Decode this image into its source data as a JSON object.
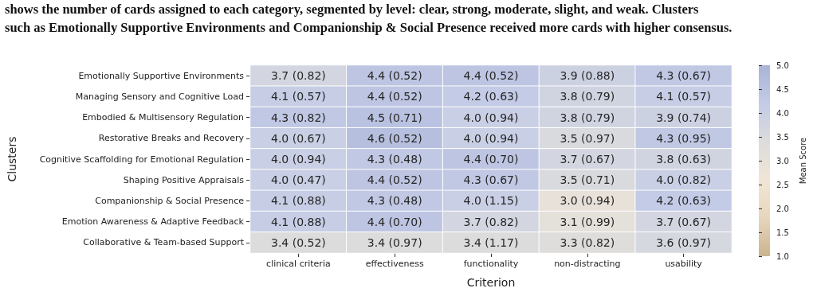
{
  "chart_data": {
    "type": "heatmap",
    "xlabel": "Criterion",
    "ylabel": "Clusters",
    "clabel": "Mean Score",
    "annotations": [
      "shows the number of cards assigned to each category, segmented by level: clear, strong, moderate, slight, and weak. Clusters",
      "such as Emotionally Supportive Environments and Companionship & Social Presence received more cards with higher consensus."
    ],
    "categories": [
      "clinical criteria",
      "effectiveness",
      "functionality",
      "non-distracting",
      "usability"
    ],
    "y_categories": [
      "Emotionally Supportive Environments",
      "Managing Sensory and Cognitive Load",
      "Embodied & Multisensory Regulation",
      "Restorative Breaks and Recovery",
      "Cognitive Scaffolding for Emotional Regulation",
      "Shaping Positive Appraisals",
      "Companionship & Social Presence",
      "Emotion Awareness & Adaptive Feedback",
      "Collaborative & Team-based Support"
    ],
    "cells": [
      [
        3.7,
        4.4,
        4.4,
        3.9,
        4.3
      ],
      [
        4.1,
        4.4,
        4.2,
        3.8,
        4.1
      ],
      [
        4.3,
        4.5,
        4.0,
        3.8,
        3.9
      ],
      [
        4.0,
        4.6,
        4.0,
        3.5,
        4.3
      ],
      [
        4.0,
        4.3,
        4.4,
        3.7,
        3.8
      ],
      [
        4.0,
        4.4,
        4.3,
        3.5,
        4.0
      ],
      [
        4.1,
        4.3,
        4.0,
        3.0,
        4.2
      ],
      [
        4.1,
        4.4,
        3.7,
        3.1,
        3.7
      ],
      [
        3.4,
        3.4,
        3.4,
        3.3,
        3.6
      ]
    ],
    "cell_labels": [
      [
        "3.7 (0.82)",
        "4.4 (0.52)",
        "4.4 (0.52)",
        "3.9 (0.88)",
        "4.3 (0.67)"
      ],
      [
        "4.1 (0.57)",
        "4.4 (0.52)",
        "4.2 (0.63)",
        "3.8 (0.79)",
        "4.1 (0.57)"
      ],
      [
        "4.3 (0.82)",
        "4.5 (0.71)",
        "4.0 (0.94)",
        "3.8 (0.79)",
        "3.9 (0.74)"
      ],
      [
        "4.0 (0.67)",
        "4.6 (0.52)",
        "4.0 (0.94)",
        "3.5 (0.97)",
        "4.3 (0.95)"
      ],
      [
        "4.0 (0.94)",
        "4.3 (0.48)",
        "4.4 (0.70)",
        "3.7 (0.67)",
        "3.8 (0.63)"
      ],
      [
        "4.0 (0.47)",
        "4.4 (0.52)",
        "4.3 (0.67)",
        "3.5 (0.71)",
        "4.0 (0.82)"
      ],
      [
        "4.1 (0.88)",
        "4.3 (0.48)",
        "4.0 (1.15)",
        "3.0 (0.94)",
        "4.2 (0.63)"
      ],
      [
        "4.1 (0.88)",
        "4.4 (0.70)",
        "3.7 (0.82)",
        "3.1 (0.99)",
        "3.7 (0.67)"
      ],
      [
        "3.4 (0.52)",
        "3.4 (0.97)",
        "3.4 (1.17)",
        "3.3 (0.82)",
        "3.6 (0.97)"
      ]
    ],
    "clim": [
      1.0,
      5.0
    ],
    "cticks": [
      {
        "value": 1,
        "label": "1.0"
      },
      {
        "value": 1.5,
        "label": "1.5"
      },
      {
        "value": 2,
        "label": "2.0"
      },
      {
        "value": 2.5,
        "label": "2.5"
      },
      {
        "value": 3,
        "label": "3.0"
      },
      {
        "value": 3.5,
        "label": "3.5"
      },
      {
        "value": 4,
        "label": "4.0"
      },
      {
        "value": 4.5,
        "label": "4.5"
      },
      {
        "value": 5,
        "label": "5.0"
      }
    ]
  }
}
